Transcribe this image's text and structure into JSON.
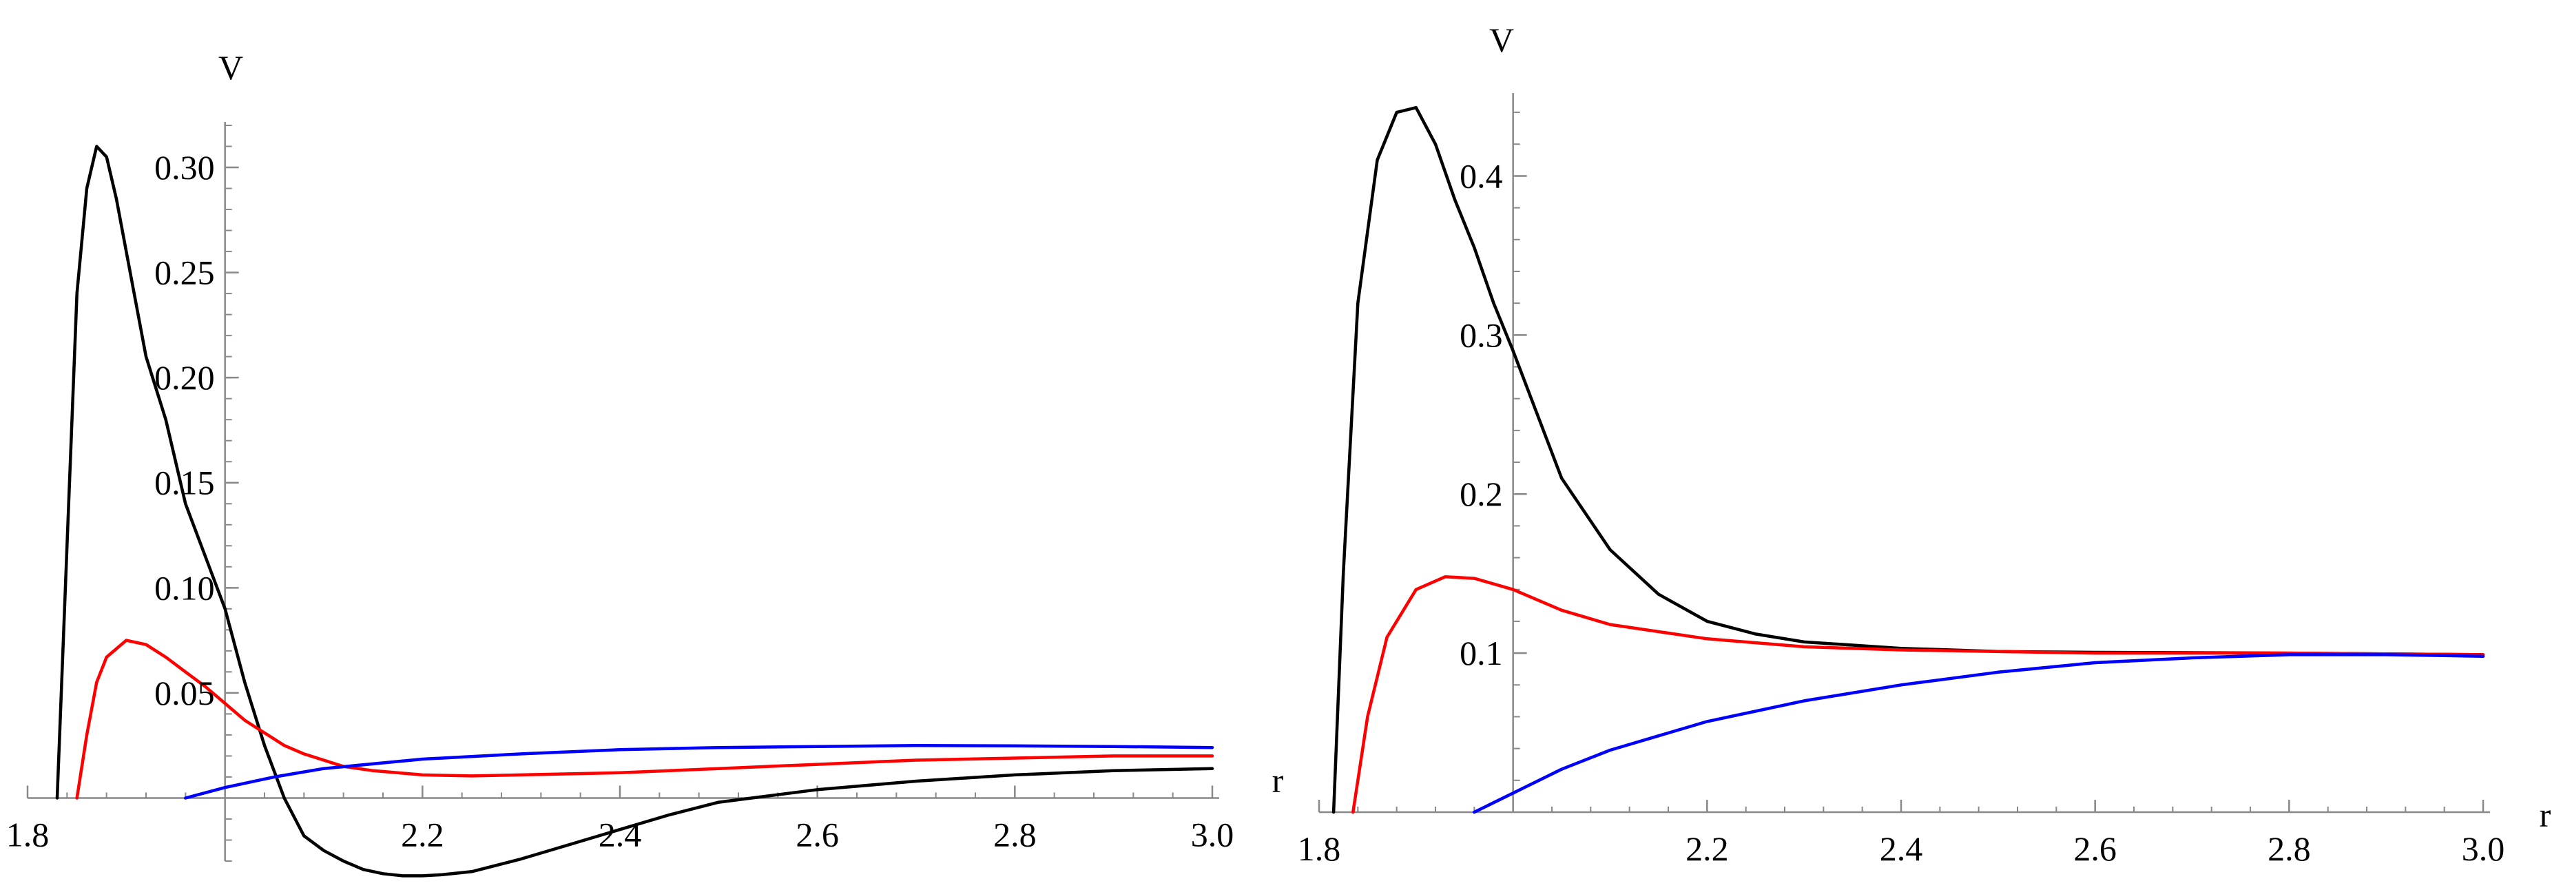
{
  "chart_data": [
    {
      "type": "line",
      "title": "",
      "xlabel": "",
      "ylabel": "V",
      "xlim": [
        1.8,
        3.0
      ],
      "ylim": [
        -0.03,
        0.32
      ],
      "axes_origin": {
        "x": 2.0,
        "y": 0.0
      },
      "grid": false,
      "x_ticks": [
        {
          "value": 1.8,
          "label": "1.8"
        },
        {
          "value": 2.2,
          "label": "2.2"
        },
        {
          "value": 2.4,
          "label": "2.4"
        },
        {
          "value": 2.6,
          "label": "2.6"
        },
        {
          "value": 2.8,
          "label": "2.8"
        },
        {
          "value": 3.0,
          "label": "3.0"
        }
      ],
      "y_ticks": [
        {
          "value": 0.05,
          "label": "0.05"
        },
        {
          "value": 0.1,
          "label": "0.10"
        },
        {
          "value": 0.15,
          "label": "0.15"
        },
        {
          "value": 0.2,
          "label": "0.20"
        },
        {
          "value": 0.25,
          "label": "0.25"
        },
        {
          "value": 0.3,
          "label": "0.30"
        }
      ],
      "series": [
        {
          "color": "#000000",
          "x": [
            1.83,
            1.84,
            1.85,
            1.86,
            1.87,
            1.88,
            1.89,
            1.9,
            1.92,
            1.94,
            1.96,
            1.98,
            2.0,
            2.02,
            2.04,
            2.06,
            2.08,
            2.1,
            2.12,
            2.14,
            2.16,
            2.18,
            2.2,
            2.22,
            2.25,
            2.3,
            2.35,
            2.4,
            2.45,
            2.5,
            2.6,
            2.7,
            2.8,
            2.9,
            3.0
          ],
          "y": [
            0.0,
            0.12,
            0.24,
            0.29,
            0.31,
            0.305,
            0.285,
            0.26,
            0.21,
            0.18,
            0.14,
            0.115,
            0.09,
            0.055,
            0.025,
            0.0,
            -0.018,
            -0.025,
            -0.03,
            -0.034,
            -0.036,
            -0.037,
            -0.037,
            -0.0365,
            -0.035,
            -0.029,
            -0.022,
            -0.015,
            -0.008,
            -0.002,
            0.004,
            0.008,
            0.011,
            0.013,
            0.014
          ]
        },
        {
          "color": "#ff0000",
          "x": [
            1.85,
            1.86,
            1.87,
            1.88,
            1.9,
            1.92,
            1.94,
            1.96,
            1.98,
            2.0,
            2.02,
            2.04,
            2.06,
            2.08,
            2.1,
            2.12,
            2.15,
            2.2,
            2.25,
            2.3,
            2.4,
            2.5,
            2.6,
            2.7,
            2.8,
            2.9,
            3.0
          ],
          "y": [
            0.0,
            0.03,
            0.055,
            0.067,
            0.075,
            0.073,
            0.067,
            0.06,
            0.053,
            0.045,
            0.037,
            0.031,
            0.025,
            0.021,
            0.018,
            0.015,
            0.013,
            0.011,
            0.0105,
            0.011,
            0.012,
            0.014,
            0.016,
            0.018,
            0.019,
            0.02,
            0.02
          ]
        },
        {
          "color": "#0000ff",
          "x": [
            1.96,
            2.0,
            2.05,
            2.1,
            2.2,
            2.3,
            2.4,
            2.5,
            2.6,
            2.7,
            2.8,
            2.9,
            3.0
          ],
          "y": [
            0.0,
            0.005,
            0.01,
            0.014,
            0.0185,
            0.021,
            0.023,
            0.024,
            0.0245,
            0.025,
            0.0248,
            0.0245,
            0.024
          ]
        }
      ]
    },
    {
      "type": "line",
      "title": "",
      "xlabel": "r",
      "ylabel": "V",
      "xlim": [
        1.8,
        3.0
      ],
      "ylim": [
        0.0,
        0.45
      ],
      "axes_origin": {
        "x": 2.0,
        "y": 0.0
      },
      "grid": false,
      "x_ticks": [
        {
          "value": 1.8,
          "label": "1.8"
        },
        {
          "value": 2.2,
          "label": "2.2"
        },
        {
          "value": 2.4,
          "label": "2.4"
        },
        {
          "value": 2.6,
          "label": "2.6"
        },
        {
          "value": 2.8,
          "label": "2.8"
        },
        {
          "value": 3.0,
          "label": "3.0"
        }
      ],
      "y_ticks": [
        {
          "value": 0.1,
          "label": "0.1"
        },
        {
          "value": 0.2,
          "label": "0.2"
        },
        {
          "value": 0.3,
          "label": "0.3"
        },
        {
          "value": 0.4,
          "label": "0.4"
        }
      ],
      "series": [
        {
          "color": "#000000",
          "x": [
            1.815,
            1.825,
            1.84,
            1.86,
            1.88,
            1.9,
            1.92,
            1.94,
            1.96,
            1.98,
            2.0,
            2.05,
            2.1,
            2.15,
            2.2,
            2.25,
            2.3,
            2.4,
            2.5,
            2.6,
            2.8,
            3.0
          ],
          "y": [
            0.0,
            0.15,
            0.32,
            0.41,
            0.44,
            0.443,
            0.42,
            0.385,
            0.355,
            0.32,
            0.29,
            0.21,
            0.165,
            0.137,
            0.12,
            0.112,
            0.107,
            0.103,
            0.101,
            0.1005,
            0.1,
            0.099
          ]
        },
        {
          "color": "#ff0000",
          "x": [
            1.835,
            1.85,
            1.87,
            1.9,
            1.93,
            1.96,
            2.0,
            2.05,
            2.1,
            2.2,
            2.3,
            2.4,
            2.6,
            2.8,
            3.0
          ],
          "y": [
            0.0,
            0.06,
            0.11,
            0.14,
            0.148,
            0.147,
            0.14,
            0.127,
            0.118,
            0.109,
            0.104,
            0.102,
            0.1,
            0.1,
            0.099
          ]
        },
        {
          "color": "#0000ff",
          "x": [
            1.96,
            2.0,
            2.05,
            2.1,
            2.2,
            2.3,
            2.4,
            2.5,
            2.6,
            2.7,
            2.8,
            2.9,
            3.0
          ],
          "y": [
            0.0,
            0.012,
            0.027,
            0.039,
            0.057,
            0.07,
            0.08,
            0.088,
            0.094,
            0.097,
            0.099,
            0.099,
            0.098
          ]
        }
      ]
    }
  ]
}
